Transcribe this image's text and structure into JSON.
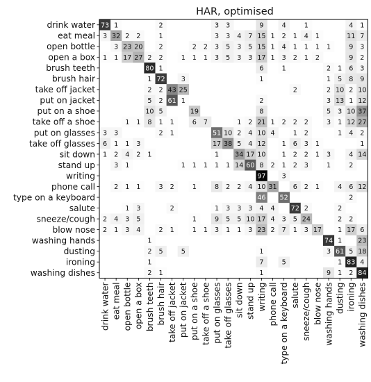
{
  "chart_data": {
    "type": "heatmap",
    "title": "HAR, optimised",
    "colormap": "greys",
    "value_range": [
      0,
      100
    ],
    "rows": [
      "drink water",
      "eat meal",
      "open bottle",
      "open a box",
      "brush teeth",
      "brush hair",
      "take off jacket",
      "put on jacket",
      "put on a shoe",
      "take off a shoe",
      "put on glasses",
      "take off glasses",
      "sit down",
      "stand up",
      "writing",
      "phone call",
      "type on a keyboard",
      "salute",
      "sneeze/cough",
      "blow nose",
      "washing hands",
      "dusting",
      "ironing",
      "washing dishes"
    ],
    "columns": [
      "drink water",
      "eat meal",
      "open bottle",
      "open a box",
      "brush teeth",
      "brush hair",
      "take off jacket",
      "put on jacket",
      "put on a shoe",
      "take off a shoe",
      "put on glasses",
      "take off glasses",
      "sit down",
      "stand up",
      "writing",
      "phone call",
      "type on a keyboard",
      "salute",
      "sneeze/cough",
      "blow nose",
      "washing hands",
      "dusting",
      "ironing",
      "washing dishes"
    ],
    "values": [
      [
        73,
        1,
        null,
        null,
        null,
        2,
        null,
        null,
        null,
        null,
        3,
        3,
        null,
        null,
        9,
        null,
        4,
        null,
        1,
        null,
        null,
        null,
        4,
        1
      ],
      [
        3,
        32,
        2,
        2,
        null,
        1,
        null,
        null,
        null,
        null,
        3,
        3,
        4,
        7,
        15,
        1,
        2,
        1,
        4,
        1,
        null,
        null,
        11,
        7
      ],
      [
        null,
        3,
        23,
        20,
        null,
        2,
        null,
        null,
        2,
        2,
        3,
        5,
        3,
        5,
        15,
        1,
        4,
        1,
        1,
        1,
        1,
        null,
        9,
        3
      ],
      [
        1,
        1,
        17,
        27,
        2,
        2,
        null,
        1,
        1,
        1,
        3,
        5,
        3,
        3,
        17,
        1,
        3,
        2,
        1,
        2,
        null,
        null,
        9,
        2
      ],
      [
        null,
        null,
        null,
        null,
        80,
        1,
        null,
        null,
        null,
        null,
        null,
        null,
        null,
        null,
        6,
        null,
        1,
        null,
        null,
        null,
        2,
        1,
        6,
        3
      ],
      [
        null,
        null,
        null,
        null,
        1,
        72,
        null,
        3,
        null,
        null,
        null,
        null,
        null,
        null,
        1,
        null,
        null,
        null,
        null,
        null,
        1,
        5,
        8,
        9
      ],
      [
        null,
        null,
        null,
        null,
        2,
        2,
        43,
        25,
        null,
        null,
        null,
        null,
        null,
        null,
        null,
        null,
        null,
        2,
        null,
        null,
        2,
        10,
        2,
        10
      ],
      [
        null,
        null,
        null,
        null,
        5,
        2,
        61,
        1,
        null,
        null,
        null,
        null,
        null,
        null,
        2,
        null,
        null,
        null,
        null,
        null,
        3,
        13,
        1,
        12
      ],
      [
        null,
        null,
        null,
        null,
        10,
        5,
        null,
        null,
        19,
        null,
        null,
        null,
        null,
        null,
        8,
        null,
        null,
        null,
        null,
        null,
        5,
        3,
        10,
        37
      ],
      [
        null,
        null,
        1,
        1,
        8,
        1,
        1,
        null,
        6,
        7,
        null,
        null,
        1,
        2,
        21,
        1,
        2,
        2,
        2,
        null,
        3,
        1,
        12,
        27
      ],
      [
        3,
        3,
        null,
        null,
        null,
        2,
        1,
        null,
        null,
        null,
        51,
        10,
        2,
        4,
        10,
        4,
        null,
        1,
        2,
        null,
        null,
        1,
        4,
        2
      ],
      [
        6,
        1,
        1,
        3,
        null,
        null,
        null,
        null,
        null,
        null,
        17,
        38,
        5,
        4,
        12,
        null,
        1,
        6,
        3,
        1,
        null,
        null,
        null,
        1
      ],
      [
        1,
        2,
        4,
        2,
        1,
        null,
        null,
        null,
        null,
        null,
        1,
        null,
        34,
        17,
        10,
        null,
        1,
        2,
        2,
        1,
        3,
        null,
        4,
        14
      ],
      [
        null,
        3,
        1,
        null,
        null,
        null,
        null,
        1,
        1,
        1,
        1,
        1,
        14,
        60,
        8,
        2,
        1,
        2,
        3,
        null,
        1,
        null,
        2,
        null
      ],
      [
        null,
        null,
        null,
        null,
        null,
        null,
        null,
        null,
        null,
        null,
        null,
        null,
        null,
        null,
        97,
        null,
        3,
        null,
        null,
        null,
        null,
        null,
        null,
        null
      ],
      [
        null,
        2,
        1,
        1,
        null,
        3,
        2,
        null,
        1,
        null,
        8,
        2,
        2,
        4,
        10,
        31,
        null,
        6,
        2,
        1,
        null,
        4,
        6,
        12
      ],
      [
        null,
        null,
        null,
        null,
        null,
        null,
        null,
        null,
        null,
        null,
        null,
        null,
        null,
        null,
        46,
        null,
        52,
        null,
        null,
        null,
        null,
        null,
        2,
        null
      ],
      [
        null,
        null,
        1,
        3,
        null,
        null,
        2,
        null,
        null,
        null,
        1,
        3,
        3,
        3,
        4,
        4,
        null,
        72,
        2,
        null,
        null,
        2,
        null,
        null
      ],
      [
        2,
        4,
        3,
        5,
        null,
        null,
        null,
        null,
        1,
        null,
        9,
        5,
        5,
        10,
        17,
        4,
        3,
        5,
        24,
        null,
        null,
        2,
        2,
        null
      ],
      [
        2,
        1,
        3,
        4,
        null,
        2,
        1,
        null,
        1,
        1,
        3,
        1,
        1,
        3,
        23,
        2,
        7,
        1,
        3,
        17,
        null,
        1,
        17,
        6
      ],
      [
        null,
        null,
        null,
        null,
        1,
        null,
        null,
        null,
        null,
        null,
        null,
        null,
        null,
        null,
        null,
        null,
        null,
        null,
        null,
        null,
        74,
        1,
        null,
        23
      ],
      [
        null,
        null,
        null,
        null,
        2,
        5,
        null,
        5,
        null,
        null,
        null,
        null,
        null,
        null,
        1,
        null,
        null,
        null,
        null,
        null,
        3,
        61,
        5,
        18
      ],
      [
        null,
        null,
        null,
        null,
        1,
        null,
        null,
        null,
        null,
        null,
        null,
        null,
        null,
        null,
        7,
        null,
        5,
        null,
        null,
        null,
        null,
        1,
        83,
        4
      ],
      [
        null,
        null,
        null,
        null,
        2,
        1,
        null,
        null,
        null,
        null,
        null,
        null,
        null,
        null,
        1,
        null,
        null,
        null,
        null,
        null,
        9,
        1,
        2,
        84
      ]
    ]
  }
}
